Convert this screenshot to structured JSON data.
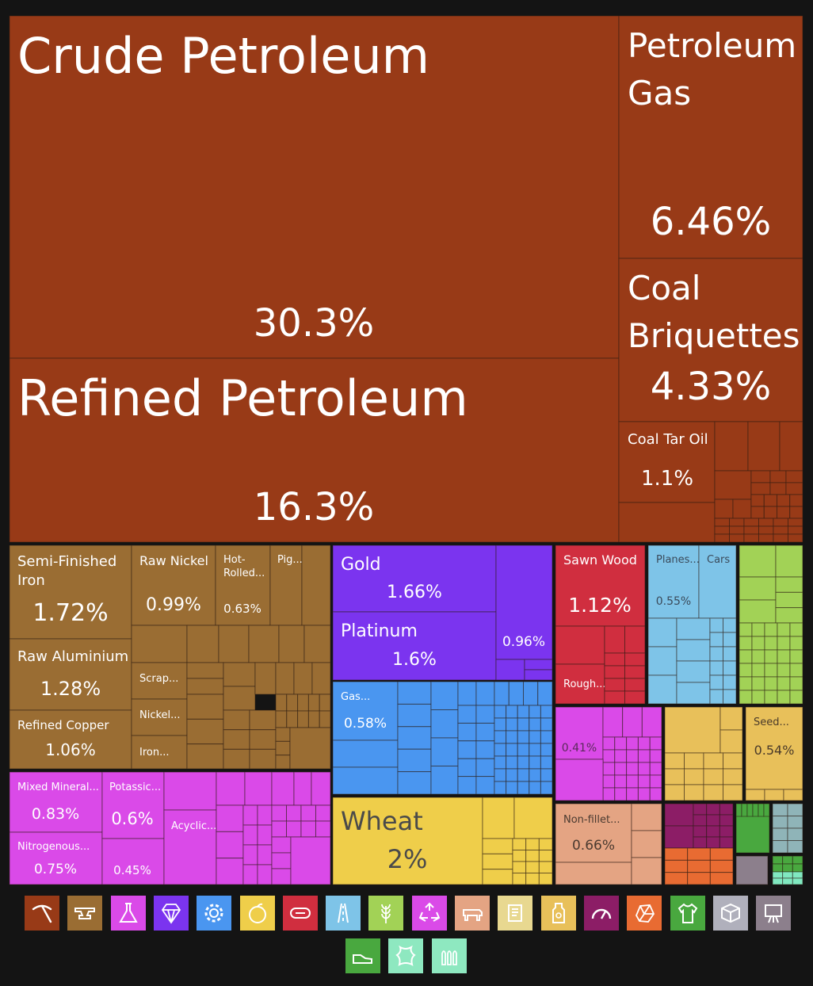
{
  "chart_data": {
    "type": "treemap",
    "title": "",
    "colors": {
      "mineral": "#983a17",
      "metals": "#9a6d33",
      "chemical": "#da4ae8",
      "precious": "#7b34ef",
      "machines": "#4a96f0",
      "vegetable": "#efce4a",
      "wood": "#d02e3f",
      "transport": "#7ec4e8",
      "foodstuffs": "#a2d256",
      "misc": "#e8c05a",
      "animal": "#e4a483",
      "instruments": "#8c1d66",
      "stone": "#e86b32",
      "textiles": "#49a83f",
      "footwear": "#8fb4b8",
      "hides": "#8c7f8c",
      "plastics": "#80e8c0"
    },
    "items": [
      {
        "name": "Crude Petroleum",
        "value": 30.3,
        "label": "30.3%",
        "sector": "mineral"
      },
      {
        "name": "Refined Petroleum",
        "value": 16.3,
        "label": "16.3%",
        "sector": "mineral"
      },
      {
        "name": "Petroleum Gas",
        "value": 6.46,
        "label": "6.46%",
        "sector": "mineral"
      },
      {
        "name": "Coal Briquettes",
        "value": 4.33,
        "label": "4.33%",
        "sector": "mineral"
      },
      {
        "name": "Coal Tar Oil",
        "value": 1.1,
        "label": "1.1%",
        "sector": "mineral"
      },
      {
        "name": "Semi-Finished Iron",
        "value": 1.72,
        "label": "1.72%",
        "sector": "metals"
      },
      {
        "name": "Raw Aluminium",
        "value": 1.28,
        "label": "1.28%",
        "sector": "metals"
      },
      {
        "name": "Refined Copper",
        "value": 1.06,
        "label": "1.06%",
        "sector": "metals"
      },
      {
        "name": "Raw Nickel",
        "value": 0.99,
        "label": "0.99%",
        "sector": "metals"
      },
      {
        "name": "Hot-Rolled...",
        "value": 0.63,
        "label": "0.63%",
        "sector": "metals"
      },
      {
        "name": "Pig...",
        "value": null,
        "label": "",
        "sector": "metals"
      },
      {
        "name": "Scrap...",
        "value": null,
        "label": "",
        "sector": "metals"
      },
      {
        "name": "Nickel...",
        "value": null,
        "label": "",
        "sector": "metals"
      },
      {
        "name": "Iron...",
        "value": null,
        "label": "",
        "sector": "metals"
      },
      {
        "name": "Gold",
        "value": 1.66,
        "label": "1.66%",
        "sector": "precious"
      },
      {
        "name": "Platinum",
        "value": 1.6,
        "label": "1.6%",
        "sector": "precious"
      },
      {
        "name": "",
        "value": 0.96,
        "label": "0.96%",
        "sector": "precious"
      },
      {
        "name": "Gas...",
        "value": 0.58,
        "label": "0.58%",
        "sector": "machines"
      },
      {
        "name": "Wheat",
        "value": 2,
        "label": "2%",
        "sector": "vegetable"
      },
      {
        "name": "Sawn Wood",
        "value": 1.12,
        "label": "1.12%",
        "sector": "wood"
      },
      {
        "name": "Rough...",
        "value": null,
        "label": "",
        "sector": "wood"
      },
      {
        "name": "Planes...",
        "value": 0.55,
        "label": "0.55%",
        "sector": "transport"
      },
      {
        "name": "Cars",
        "value": null,
        "label": "",
        "sector": "transport"
      },
      {
        "name": "",
        "value": 0.41,
        "label": "0.41%",
        "sector": "chemical"
      },
      {
        "name": "Seed...",
        "value": 0.54,
        "label": "0.54%",
        "sector": "misc"
      },
      {
        "name": "Non-fillet...",
        "value": 0.66,
        "label": "0.66%",
        "sector": "animal"
      },
      {
        "name": "Mixed Mineral...",
        "value": 0.83,
        "label": "0.83%",
        "sector": "chemical"
      },
      {
        "name": "Nitrogenous...",
        "value": 0.75,
        "label": "0.75%",
        "sector": "chemical"
      },
      {
        "name": "Potassic...",
        "value": 0.6,
        "label": "0.6%",
        "sector": "chemical"
      },
      {
        "name": "",
        "value": 0.45,
        "label": "0.45%",
        "sector": "chemical"
      },
      {
        "name": "Acyclic...",
        "value": null,
        "label": "",
        "sector": "chemical"
      }
    ],
    "legend_icons": [
      {
        "icon": "pickaxe-icon",
        "color": "#983a17"
      },
      {
        "icon": "anvil-icon",
        "color": "#9a6d33"
      },
      {
        "icon": "flask-icon",
        "color": "#da4ae8"
      },
      {
        "icon": "diamond-icon",
        "color": "#7b34ef"
      },
      {
        "icon": "gear-icon",
        "color": "#4a96f0"
      },
      {
        "icon": "fruit-icon",
        "color": "#efce4a"
      },
      {
        "icon": "log-icon",
        "color": "#d02e3f"
      },
      {
        "icon": "road-icon",
        "color": "#7ec4e8"
      },
      {
        "icon": "wheat-icon",
        "color": "#a2d256"
      },
      {
        "icon": "recycle-icon",
        "color": "#da4ae8"
      },
      {
        "icon": "cow-icon",
        "color": "#e4a483"
      },
      {
        "icon": "scroll-icon",
        "color": "#e8d890"
      },
      {
        "icon": "bottle-icon",
        "color": "#e8c05a"
      },
      {
        "icon": "gauge-icon",
        "color": "#8c1d66"
      },
      {
        "icon": "stone-icon",
        "color": "#e86b32"
      },
      {
        "icon": "shirt-icon",
        "color": "#49a83f"
      },
      {
        "icon": "box-icon",
        "color": "#b0b0bc"
      },
      {
        "icon": "easel-icon",
        "color": "#8c7f8c"
      },
      {
        "icon": "shoe-icon",
        "color": "#49a83f"
      },
      {
        "icon": "hide-icon",
        "color": "#8ee8c0"
      },
      {
        "icon": "bullets-icon",
        "color": "#8ee8c0"
      }
    ]
  }
}
